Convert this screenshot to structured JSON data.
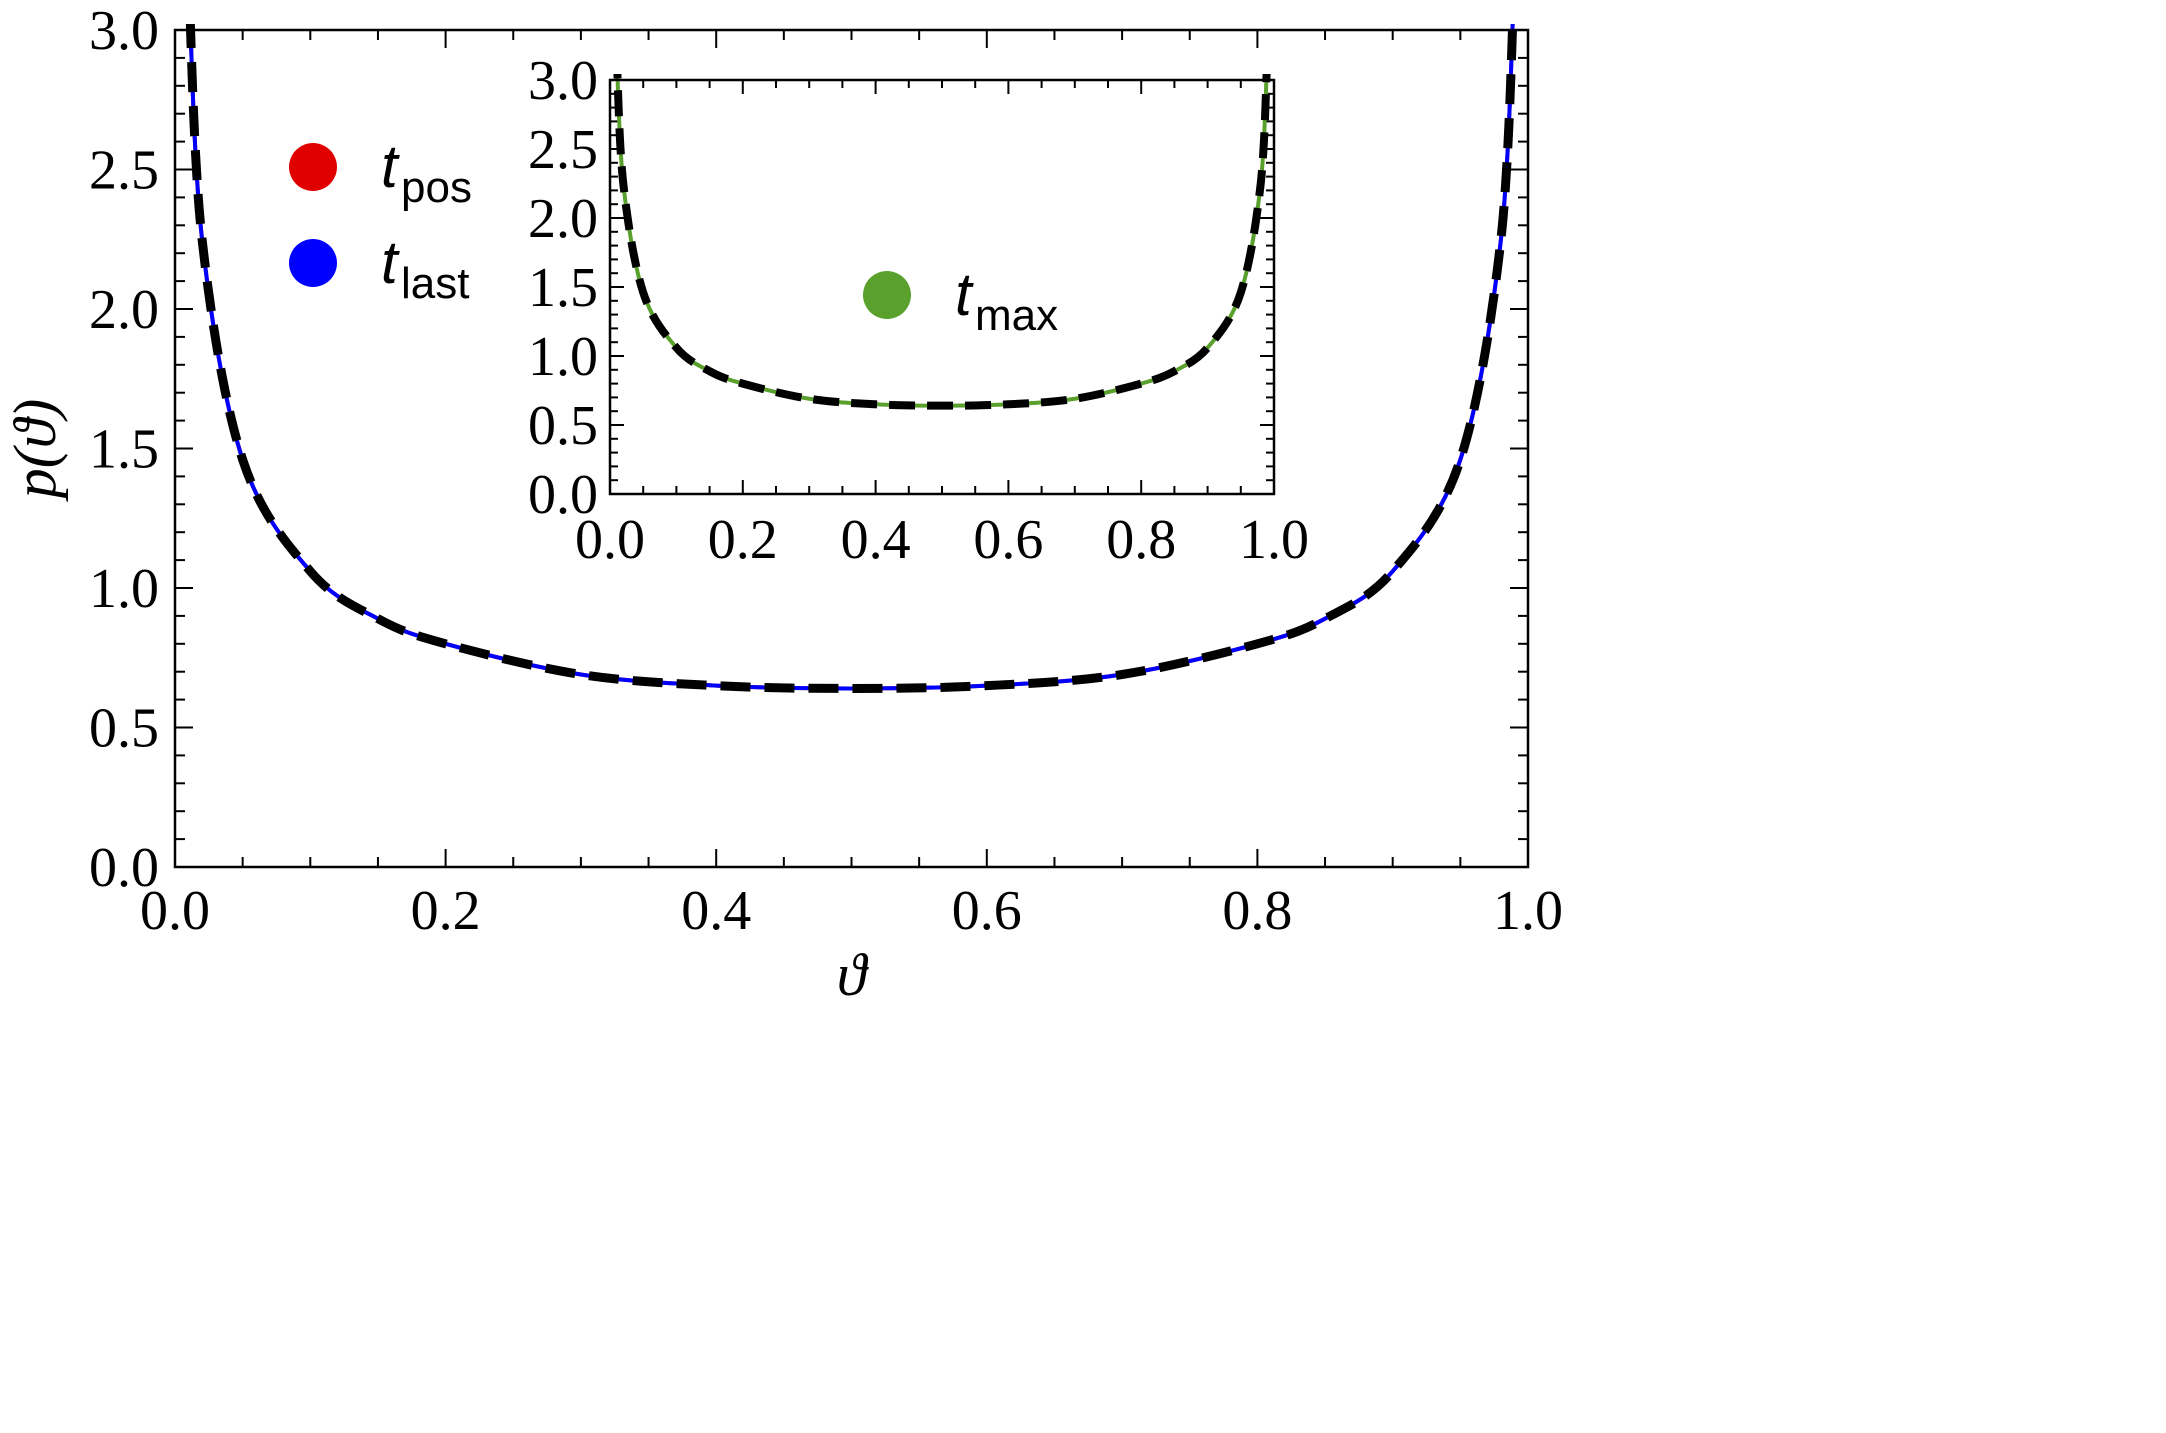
{
  "chart_data": [
    {
      "type": "line",
      "xlabel": "ϑ",
      "ylabel": "p(ϑ)",
      "xlim": [
        0.0,
        1.0
      ],
      "ylim": [
        0.0,
        3.0
      ],
      "x_ticks": [
        "0.0",
        "0.2",
        "0.4",
        "0.6",
        "0.8",
        "1.0"
      ],
      "y_ticks": [
        "0.0",
        "0.5",
        "1.0",
        "1.5",
        "2.0",
        "2.5",
        "3.0"
      ],
      "grid": false,
      "legend_position": "top-left",
      "series": [
        {
          "name": "t_pos",
          "legend_main": "t",
          "legend_sub": "pos",
          "color": "#e00000",
          "style": "solid"
        },
        {
          "name": "t_last",
          "legend_main": "t",
          "legend_sub": "last",
          "color": "#0000ff",
          "style": "solid"
        },
        {
          "name": "",
          "color": "#000000",
          "style": "dashed"
        }
      ],
      "x": [
        0.01,
        0.02,
        0.05,
        0.1,
        0.15,
        0.2,
        0.3,
        0.4,
        0.5,
        0.6,
        0.7,
        0.8,
        0.85,
        0.9,
        0.95,
        0.98,
        0.99
      ],
      "y": [
        3.2,
        2.25,
        1.46,
        1.06,
        0.89,
        0.8,
        0.69,
        0.65,
        0.64,
        0.65,
        0.69,
        0.8,
        0.89,
        1.06,
        1.46,
        2.25,
        3.2
      ]
    },
    {
      "type": "line",
      "role": "inset",
      "xlim": [
        0.0,
        1.0
      ],
      "ylim": [
        0.0,
        3.0
      ],
      "x_ticks": [
        "0.0",
        "0.2",
        "0.4",
        "0.6",
        "0.8",
        "1.0"
      ],
      "y_ticks": [
        "0.0",
        "0.5",
        "1.0",
        "1.5",
        "2.0",
        "2.5",
        "3.0"
      ],
      "grid": false,
      "legend_position": "center",
      "series": [
        {
          "name": "t_max",
          "legend_main": "t",
          "legend_sub": "max",
          "color": "#5aa02c",
          "style": "solid"
        },
        {
          "name": "",
          "color": "#000000",
          "style": "dashed"
        }
      ],
      "x": [
        0.01,
        0.02,
        0.05,
        0.1,
        0.15,
        0.2,
        0.3,
        0.4,
        0.5,
        0.6,
        0.7,
        0.8,
        0.85,
        0.9,
        0.95,
        0.98,
        0.99
      ],
      "y": [
        3.2,
        2.25,
        1.46,
        1.06,
        0.89,
        0.8,
        0.69,
        0.65,
        0.64,
        0.65,
        0.69,
        0.8,
        0.89,
        1.06,
        1.46,
        2.25,
        3.2
      ]
    }
  ]
}
